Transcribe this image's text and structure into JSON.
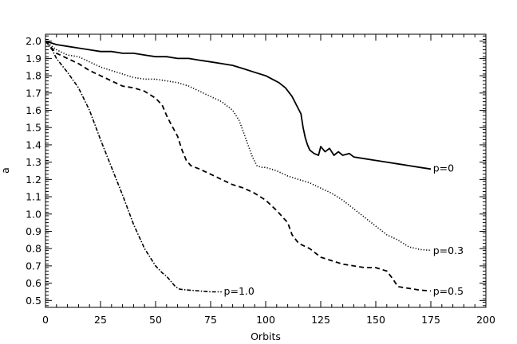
{
  "chart_data": {
    "type": "line",
    "title": "",
    "xlabel": "Orbits",
    "ylabel": "a",
    "xlim": [
      0,
      200
    ],
    "ylim": [
      0.46,
      2.04
    ],
    "x_ticks": [
      0,
      25,
      50,
      75,
      100,
      125,
      150,
      175,
      200
    ],
    "x_tick_labels": [
      "0",
      "25",
      "50",
      "75",
      "100",
      "125",
      "150",
      "175",
      "200"
    ],
    "y_ticks": [
      0.5,
      0.6,
      0.7,
      0.8,
      0.9,
      1.0,
      1.1,
      1.2,
      1.3,
      1.4,
      1.5,
      1.6,
      1.7,
      1.8,
      1.9,
      2.0
    ],
    "y_tick_labels": [
      "0.5",
      "0.6",
      "0.7",
      "0.8",
      "0.9",
      "1.0",
      "1.1",
      "1.2",
      "1.3",
      "1.4",
      "1.5",
      "1.6",
      "1.7",
      "1.8",
      "1.9",
      "2.0"
    ],
    "grid": false,
    "legend": "none (curves labelled inline)",
    "series": [
      {
        "name": "p=0",
        "style": "solid",
        "x": [
          0,
          5,
          10,
          15,
          20,
          25,
          30,
          35,
          40,
          45,
          50,
          55,
          60,
          65,
          70,
          75,
          80,
          85,
          90,
          95,
          100,
          103,
          106,
          109,
          112,
          114,
          116,
          117,
          118,
          119,
          120,
          122,
          124,
          125,
          127,
          129,
          131,
          133,
          135,
          138,
          140,
          145,
          150,
          155,
          160,
          165,
          170,
          175
        ],
        "y": [
          2.0,
          1.98,
          1.97,
          1.96,
          1.95,
          1.94,
          1.94,
          1.93,
          1.93,
          1.92,
          1.91,
          1.91,
          1.9,
          1.9,
          1.89,
          1.88,
          1.87,
          1.86,
          1.84,
          1.82,
          1.8,
          1.78,
          1.76,
          1.73,
          1.68,
          1.63,
          1.58,
          1.5,
          1.44,
          1.4,
          1.37,
          1.35,
          1.34,
          1.39,
          1.36,
          1.38,
          1.34,
          1.36,
          1.34,
          1.35,
          1.33,
          1.32,
          1.31,
          1.3,
          1.29,
          1.28,
          1.27,
          1.26
        ]
      },
      {
        "name": "p=0.3",
        "style": "dotted",
        "x": [
          0,
          5,
          10,
          15,
          20,
          25,
          30,
          35,
          40,
          45,
          50,
          55,
          60,
          65,
          70,
          75,
          80,
          85,
          88,
          90,
          92,
          94,
          96,
          98,
          100,
          105,
          110,
          115,
          120,
          125,
          130,
          135,
          140,
          145,
          150,
          155,
          160,
          165,
          170,
          175
        ],
        "y": [
          2.0,
          1.95,
          1.92,
          1.91,
          1.88,
          1.85,
          1.83,
          1.81,
          1.79,
          1.78,
          1.78,
          1.77,
          1.76,
          1.74,
          1.71,
          1.68,
          1.65,
          1.6,
          1.54,
          1.47,
          1.4,
          1.33,
          1.28,
          1.27,
          1.27,
          1.25,
          1.22,
          1.2,
          1.18,
          1.15,
          1.12,
          1.08,
          1.03,
          0.98,
          0.93,
          0.88,
          0.85,
          0.81,
          0.795,
          0.79
        ]
      },
      {
        "name": "p=0.5",
        "style": "dashed",
        "x": [
          0,
          5,
          10,
          15,
          20,
          25,
          30,
          35,
          40,
          45,
          50,
          53,
          55,
          57,
          60,
          62,
          64,
          66,
          68,
          70,
          75,
          80,
          85,
          90,
          95,
          100,
          105,
          110,
          112,
          115,
          120,
          125,
          130,
          135,
          140,
          145,
          150,
          155,
          158,
          160,
          165,
          170,
          175
        ],
        "y": [
          2.0,
          1.93,
          1.9,
          1.87,
          1.83,
          1.8,
          1.77,
          1.74,
          1.73,
          1.71,
          1.67,
          1.63,
          1.57,
          1.52,
          1.45,
          1.37,
          1.31,
          1.28,
          1.27,
          1.26,
          1.23,
          1.2,
          1.17,
          1.15,
          1.12,
          1.08,
          1.02,
          0.95,
          0.88,
          0.83,
          0.8,
          0.75,
          0.73,
          0.71,
          0.7,
          0.69,
          0.69,
          0.67,
          0.62,
          0.58,
          0.57,
          0.56,
          0.555
        ]
      },
      {
        "name": "p=1.0",
        "style": "dash-dot",
        "x": [
          0,
          3,
          5,
          10,
          15,
          20,
          25,
          30,
          35,
          40,
          45,
          50,
          53,
          55,
          57,
          59,
          61,
          65,
          70,
          75,
          80
        ],
        "y": [
          2.0,
          1.95,
          1.9,
          1.82,
          1.73,
          1.6,
          1.43,
          1.27,
          1.11,
          0.94,
          0.8,
          0.7,
          0.66,
          0.64,
          0.61,
          0.58,
          0.565,
          0.56,
          0.555,
          0.55,
          0.55
        ]
      }
    ],
    "annotations": [
      {
        "text": "p=0",
        "x": 176,
        "y": 1.265
      },
      {
        "text": "p=0.3",
        "x": 176,
        "y": 0.79
      },
      {
        "text": "p=0.5",
        "x": 176,
        "y": 0.555
      },
      {
        "text": "p=1.0",
        "x": 81,
        "y": 0.555
      }
    ]
  }
}
